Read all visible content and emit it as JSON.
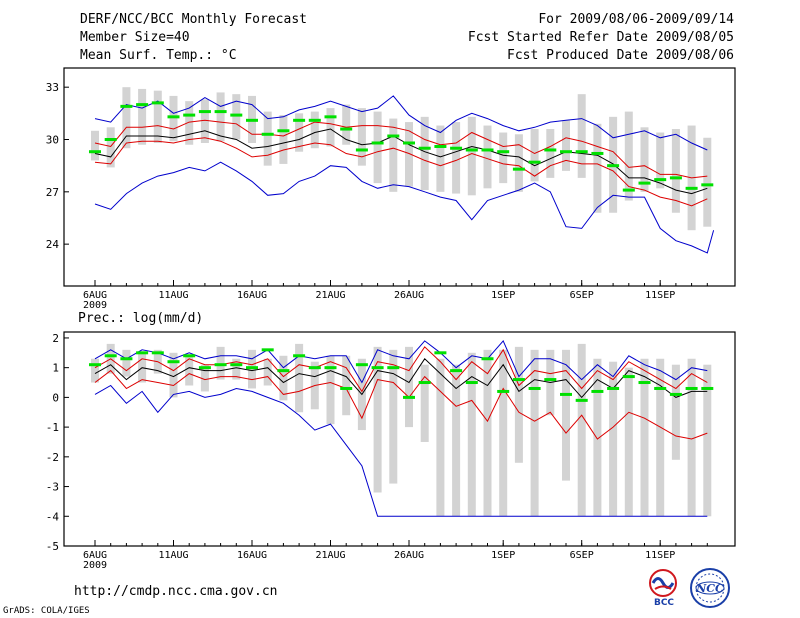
{
  "header": {
    "title": "DERF/NCC/BCC Monthly Forecast",
    "member_size": "Member Size=40",
    "variable": "Mean Surf. Temp.: °C",
    "period": "For 2009/08/06-2009/09/14",
    "fcst_started": "Fcst Started Refer Date 2009/08/05",
    "fcst_produced": "Fcst Produced Date 2009/08/06"
  },
  "footer": {
    "url": "http://cmdp.ncc.cma.gov.cn",
    "grads": "GrADS: COLA/IGES",
    "logo_left": "BCC",
    "logo_right": "NCC"
  },
  "colors": {
    "frame": "#000000",
    "bar": "#d3d3d3",
    "median": "#00e000",
    "max_min": "#0000cc",
    "spread": "#dd0000",
    "mean": "#000000"
  },
  "chart_data": [
    {
      "type": "box-plume",
      "title": "Mean Surf. Temp.: °C",
      "xlabel": "",
      "ylabel": "",
      "xticks": [
        "6AUG\n2009",
        "11AUG",
        "16AUG",
        "21AUG",
        "26AUG",
        "1SEP",
        "6SEP",
        "11SEP"
      ],
      "xtick_days": [
        0,
        5,
        10,
        15,
        20,
        26,
        31,
        36
      ],
      "yticks": [
        "24",
        "27",
        "30",
        "33"
      ],
      "ylim": [
        21.6,
        34.1
      ],
      "days": 40,
      "bar_low": [
        28.8,
        28.4,
        29.5,
        29.7,
        29.8,
        29.9,
        29.7,
        29.8,
        29.9,
        30.0,
        29.8,
        28.5,
        28.6,
        29.3,
        29.5,
        29.6,
        29.7,
        28.5,
        27.5,
        27.0,
        27.3,
        27.1,
        27.0,
        26.9,
        26.8,
        27.2,
        27.5,
        27.0,
        27.6,
        27.8,
        28.2,
        27.8,
        25.8,
        25.8,
        26.5,
        27.0,
        27.2,
        25.8,
        24.8,
        25.0
      ],
      "bar_high": [
        30.5,
        30.7,
        33.0,
        32.9,
        32.8,
        32.5,
        32.2,
        32.3,
        32.7,
        32.6,
        32.5,
        31.6,
        31.4,
        31.5,
        31.6,
        31.8,
        32.0,
        31.8,
        31.6,
        31.2,
        31.0,
        31.3,
        30.8,
        31.0,
        31.3,
        30.8,
        30.4,
        30.3,
        30.6,
        30.6,
        31.1,
        32.6,
        30.9,
        31.3,
        31.6,
        30.7,
        30.4,
        30.6,
        30.8,
        30.1
      ],
      "median": [
        29.3,
        30.0,
        31.9,
        32.0,
        32.1,
        31.3,
        31.4,
        31.6,
        31.6,
        31.4,
        31.1,
        30.3,
        30.5,
        31.1,
        31.1,
        31.3,
        30.6,
        29.4,
        29.8,
        30.2,
        29.8,
        29.5,
        29.6,
        29.5,
        29.4,
        29.4,
        29.3,
        28.3,
        28.7,
        29.4,
        29.3,
        29.3,
        29.2,
        28.5,
        27.1,
        27.5,
        27.7,
        27.8,
        27.2,
        27.4
      ],
      "series": [
        {
          "name": "max",
          "values": [
            31.2,
            31.0,
            32.0,
            31.8,
            32.2,
            31.5,
            31.8,
            32.4,
            31.9,
            32.2,
            32.0,
            31.2,
            31.3,
            31.7,
            31.9,
            32.2,
            31.9,
            31.6,
            31.8,
            32.5,
            31.4,
            30.8,
            30.4,
            31.1,
            31.5,
            31.2,
            30.8,
            30.5,
            30.7,
            31.0,
            31.1,
            31.2,
            30.8,
            30.1,
            30.3,
            30.5,
            30.1,
            30.3,
            29.8,
            29.4
          ]
        },
        {
          "name": "upper",
          "values": [
            29.8,
            29.6,
            30.7,
            30.7,
            30.8,
            30.6,
            31.0,
            31.1,
            31.0,
            30.9,
            30.3,
            30.3,
            30.2,
            30.6,
            31.0,
            30.9,
            30.7,
            30.8,
            30.8,
            30.7,
            30.5,
            30.0,
            29.7,
            29.8,
            30.4,
            30.0,
            29.6,
            29.7,
            29.2,
            29.6,
            30.1,
            29.9,
            29.6,
            29.3,
            28.4,
            28.5,
            28.0,
            28.0,
            27.8,
            27.9
          ]
        },
        {
          "name": "mean",
          "values": [
            29.2,
            29.0,
            30.2,
            30.2,
            30.2,
            30.1,
            30.3,
            30.5,
            30.2,
            30.0,
            29.5,
            29.6,
            29.8,
            30.0,
            30.4,
            30.6,
            30.0,
            29.7,
            29.8,
            30.2,
            29.7,
            29.3,
            29.0,
            29.3,
            29.6,
            29.4,
            29.1,
            29.0,
            28.5,
            28.9,
            29.3,
            29.2,
            29.1,
            28.6,
            27.8,
            27.8,
            27.5,
            27.1,
            26.9,
            27.2
          ]
        },
        {
          "name": "lower",
          "values": [
            28.7,
            28.6,
            29.8,
            29.9,
            29.9,
            29.8,
            30.0,
            30.1,
            29.9,
            29.5,
            29.0,
            29.1,
            29.4,
            29.6,
            29.8,
            29.7,
            29.2,
            29.0,
            29.3,
            29.5,
            29.2,
            28.8,
            28.5,
            28.8,
            29.2,
            28.9,
            28.6,
            28.5,
            27.9,
            28.5,
            28.8,
            28.6,
            28.6,
            28.2,
            27.3,
            27.1,
            26.7,
            26.5,
            26.2,
            26.6
          ]
        },
        {
          "name": "min",
          "values": [
            26.3,
            26.0,
            26.9,
            27.5,
            27.9,
            28.1,
            28.4,
            28.2,
            28.7,
            28.2,
            27.6,
            26.8,
            26.9,
            27.6,
            27.9,
            28.5,
            28.4,
            27.6,
            27.2,
            27.4,
            27.3,
            27.0,
            26.7,
            26.5,
            25.4,
            26.5,
            26.8,
            27.1,
            27.5,
            27.0,
            25.0,
            24.9,
            26.1,
            26.8,
            26.7,
            26.7,
            24.9,
            24.2,
            23.9,
            23.5
          ]
        }
      ],
      "extra_last_min": 24.8
    },
    {
      "type": "box-plume",
      "title": "Prec.: log(mm/d)",
      "xlabel": "",
      "ylabel": "",
      "xticks": [
        "6AUG\n2009",
        "11AUG",
        "16AUG",
        "21AUG",
        "26AUG",
        "1SEP",
        "6SEP",
        "11SEP"
      ],
      "xtick_days": [
        0,
        5,
        10,
        15,
        20,
        26,
        31,
        36
      ],
      "yticks": [
        "-5",
        "-4",
        "-3",
        "-2",
        "-1",
        "0",
        "1",
        "2"
      ],
      "ylim": [
        -5,
        2.2
      ],
      "days": 40,
      "bar_low": [
        0.5,
        0.8,
        0.7,
        0.5,
        0.8,
        0.0,
        0.4,
        0.2,
        0.6,
        0.6,
        0.3,
        0.4,
        -0.1,
        -0.5,
        -0.4,
        -0.9,
        -0.6,
        -1.1,
        -3.2,
        -2.9,
        -1.0,
        -1.5,
        -4.0,
        -4.0,
        -4.0,
        -4.0,
        -4.0,
        -2.2,
        -4.0,
        -0.6,
        -2.8,
        -4.0,
        -4.0,
        -4.0,
        -4.0,
        -4.0,
        -4.0,
        -2.1,
        -4.0,
        -4.0
      ],
      "bar_high": [
        1.3,
        1.8,
        1.6,
        1.5,
        1.6,
        1.5,
        1.4,
        1.1,
        1.7,
        1.3,
        1.6,
        1.3,
        1.4,
        1.8,
        1.2,
        1.4,
        1.4,
        1.3,
        1.7,
        1.6,
        1.7,
        1.1,
        1.3,
        1.1,
        1.5,
        1.6,
        1.6,
        1.7,
        1.6,
        1.6,
        1.6,
        1.8,
        1.3,
        1.2,
        1.0,
        1.3,
        1.3,
        1.1,
        1.3,
        1.1
      ],
      "median": [
        1.1,
        1.4,
        1.3,
        1.5,
        1.5,
        1.2,
        1.4,
        1.0,
        1.1,
        1.1,
        1.0,
        1.6,
        0.9,
        1.4,
        1.0,
        1.0,
        0.3,
        1.1,
        1.0,
        1.0,
        0.0,
        0.5,
        1.5,
        0.9,
        0.5,
        1.3,
        0.2,
        0.6,
        0.3,
        0.6,
        0.1,
        -0.1,
        0.2,
        0.3,
        0.7,
        0.5,
        0.3,
        0.1,
        0.3,
        0.3
      ],
      "series": [
        {
          "name": "max",
          "values": [
            1.3,
            1.6,
            1.3,
            1.6,
            1.5,
            1.3,
            1.5,
            1.3,
            1.4,
            1.4,
            1.3,
            1.6,
            1.0,
            1.4,
            1.3,
            1.4,
            1.4,
            0.5,
            1.6,
            1.4,
            1.3,
            1.9,
            1.5,
            1.0,
            1.4,
            1.3,
            1.9,
            0.7,
            1.3,
            1.3,
            1.1,
            0.6,
            1.1,
            0.7,
            1.4,
            1.1,
            0.9,
            0.6,
            1.0,
            0.9
          ]
        },
        {
          "name": "upper",
          "values": [
            1.0,
            1.3,
            0.9,
            1.3,
            1.2,
            0.9,
            1.3,
            1.1,
            1.1,
            1.2,
            1.1,
            1.3,
            0.7,
            1.1,
            1.0,
            1.2,
            1.0,
            0.2,
            1.2,
            1.1,
            0.9,
            1.7,
            1.2,
            0.6,
            1.2,
            0.8,
            1.6,
            0.4,
            0.9,
            0.8,
            0.9,
            0.3,
            0.9,
            0.6,
            1.2,
            0.9,
            0.6,
            0.3,
            0.8,
            0.5
          ]
        },
        {
          "name": "mean",
          "values": [
            0.8,
            1.1,
            0.6,
            1.0,
            0.9,
            0.7,
            1.0,
            0.9,
            0.9,
            1.0,
            0.9,
            1.0,
            0.5,
            0.8,
            0.7,
            0.9,
            0.7,
            0.1,
            0.9,
            0.8,
            0.5,
            1.3,
            0.8,
            0.3,
            0.7,
            0.4,
            1.1,
            0.2,
            0.6,
            0.5,
            0.6,
            0.0,
            0.6,
            0.3,
            0.9,
            0.7,
            0.4,
            0.0,
            0.2,
            0.2
          ]
        },
        {
          "name": "lower",
          "values": [
            0.5,
            0.9,
            0.3,
            0.6,
            0.5,
            0.4,
            0.8,
            0.6,
            0.7,
            0.7,
            0.6,
            0.7,
            0.1,
            0.2,
            0.4,
            0.5,
            0.3,
            -0.7,
            0.6,
            0.5,
            0.0,
            0.7,
            0.2,
            -0.3,
            -0.1,
            -0.8,
            0.3,
            -0.5,
            -0.8,
            -0.5,
            -1.2,
            -0.6,
            -1.4,
            -1.0,
            -0.5,
            -0.7,
            -1.0,
            -1.3,
            -1.4,
            -1.2
          ]
        },
        {
          "name": "min",
          "values": [
            0.1,
            0.4,
            -0.2,
            0.2,
            -0.5,
            0.1,
            0.2,
            0.0,
            0.1,
            0.3,
            0.2,
            0.0,
            -0.2,
            -0.6,
            -1.1,
            -0.9,
            -1.6,
            -2.3,
            -4.0,
            -4.0,
            -4.0,
            -4.0,
            -4.0,
            -4.0,
            -4.0,
            -4.0,
            -4.0,
            -4.0,
            -4.0,
            -4.0,
            -4.0,
            -4.0,
            -4.0,
            -4.0,
            -4.0,
            -4.0,
            -4.0,
            -4.0,
            -4.0,
            -4.0
          ]
        }
      ]
    }
  ]
}
